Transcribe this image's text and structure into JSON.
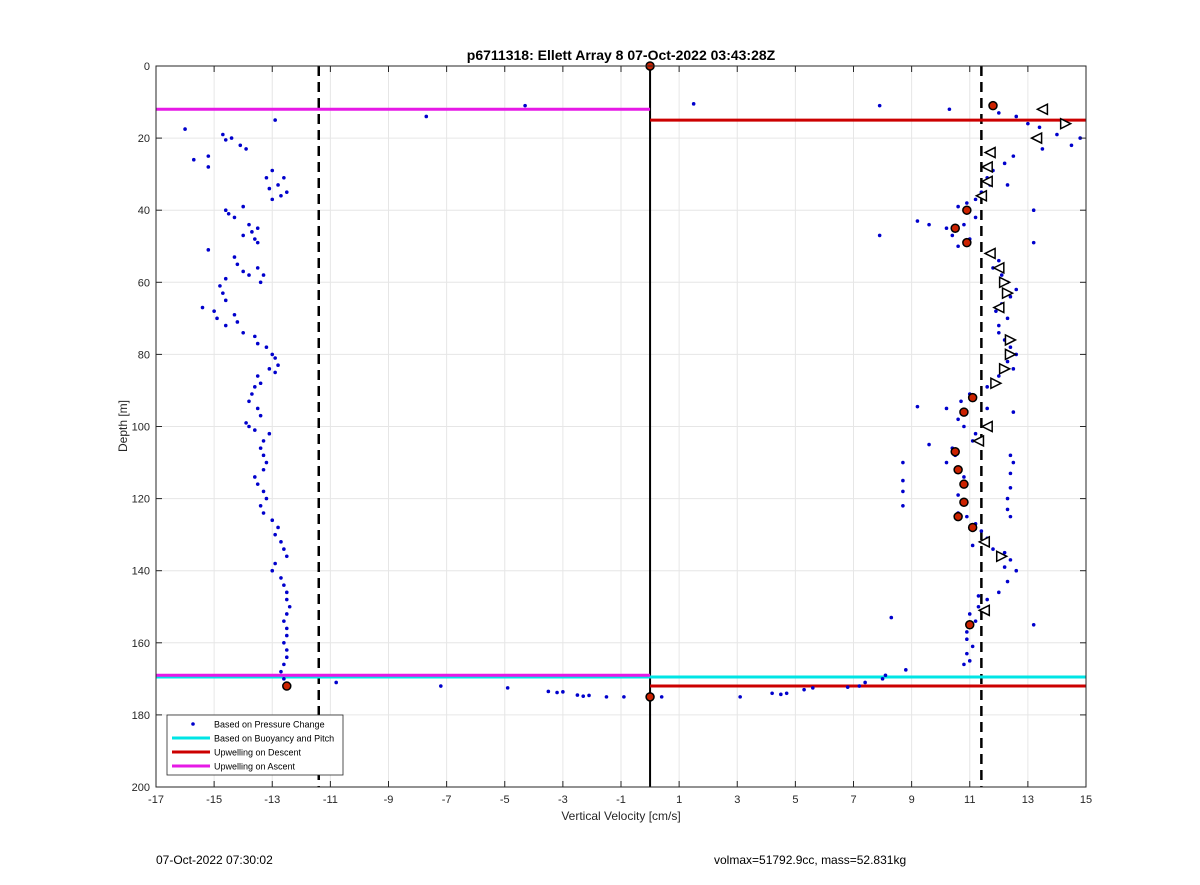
{
  "chart_data": {
    "type": "scatter",
    "title": "p6711318: Ellett Array 8 07-Oct-2022 03:43:28Z",
    "xlabel": "Vertical Velocity [cm/s]",
    "ylabel": "Depth [m]",
    "xlim": [
      -17,
      15
    ],
    "ylim": [
      0,
      200
    ],
    "y_reversed": true,
    "xticks": [
      -17,
      -15,
      -13,
      -11,
      -9,
      -7,
      -5,
      -3,
      -1,
      1,
      3,
      5,
      7,
      9,
      11,
      13,
      15
    ],
    "yticks": [
      0,
      20,
      40,
      60,
      80,
      100,
      120,
      140,
      160,
      180,
      200
    ],
    "grid": true,
    "legend_position": "bottom-left",
    "legend": [
      {
        "label": "Based on Pressure Change",
        "color": "#0000cc",
        "kind": "marker"
      },
      {
        "label": "Based on Buoyancy and Pitch",
        "color": "#00e5e5",
        "kind": "line"
      },
      {
        "label": "Upwelling on Descent",
        "color": "#cc0000",
        "kind": "line"
      },
      {
        "label": "Upwelling on Ascent",
        "color": "#e619e6",
        "kind": "line"
      }
    ],
    "colors": {
      "pressure": "#0000cc",
      "buoyancy": "#00e5e5",
      "descent": "#cc0000",
      "ascent": "#e619e6",
      "ref_line": "#000000",
      "grid": "#e6e6e6"
    },
    "reference_lines": {
      "zero": 0,
      "dashed": [
        -11.4,
        11.4
      ]
    },
    "horizontal_lines": [
      {
        "series": "ascent",
        "y": 12,
        "x0": -17,
        "x1": 0
      },
      {
        "series": "descent",
        "y": 15,
        "x0": 0,
        "x1": 15
      },
      {
        "series": "buoyancy",
        "y": 169.5,
        "x0": -17,
        "x1": 15
      },
      {
        "series": "ascent",
        "y": 169,
        "x0": -17,
        "x1": 0
      },
      {
        "series": "descent",
        "y": 172,
        "x0": 0,
        "x1": 15
      }
    ],
    "pressure_points": [
      [
        -16,
        17.5
      ],
      [
        -15.7,
        26
      ],
      [
        -15.2,
        25
      ],
      [
        -15.2,
        28
      ],
      [
        -14.7,
        19
      ],
      [
        -14.6,
        20.5
      ],
      [
        -14.4,
        20
      ],
      [
        -14.1,
        22
      ],
      [
        -13.9,
        23
      ],
      [
        -12.9,
        15
      ],
      [
        -13,
        29
      ],
      [
        -13.2,
        31
      ],
      [
        -12.8,
        33
      ],
      [
        -12.6,
        31
      ],
      [
        -12.5,
        35
      ],
      [
        -12.7,
        36
      ],
      [
        -13,
        37
      ],
      [
        -13.1,
        34
      ],
      [
        -14.6,
        40
      ],
      [
        -14.5,
        41
      ],
      [
        -14,
        39
      ],
      [
        -14.3,
        42
      ],
      [
        -13.8,
        44
      ],
      [
        -13.7,
        46
      ],
      [
        -13.6,
        48
      ],
      [
        -13.5,
        45
      ],
      [
        -14,
        47
      ],
      [
        -13.5,
        49
      ],
      [
        -15.2,
        51
      ],
      [
        -14.3,
        53
      ],
      [
        -14.2,
        55
      ],
      [
        -14,
        57
      ],
      [
        -13.8,
        58
      ],
      [
        -13.4,
        60
      ],
      [
        -13.3,
        58
      ],
      [
        -13.5,
        56
      ],
      [
        -14.6,
        59
      ],
      [
        -14.8,
        61
      ],
      [
        -14.7,
        63
      ],
      [
        -14.6,
        65
      ],
      [
        -15.4,
        67
      ],
      [
        -15,
        68
      ],
      [
        -14.9,
        70
      ],
      [
        -14.6,
        72
      ],
      [
        -14.2,
        71
      ],
      [
        -14.3,
        69
      ],
      [
        -14,
        74
      ],
      [
        -13.6,
        75
      ],
      [
        -13.5,
        77
      ],
      [
        -13.2,
        78
      ],
      [
        -13,
        80
      ],
      [
        -12.9,
        81
      ],
      [
        -12.8,
        83
      ],
      [
        -12.9,
        85
      ],
      [
        -13.1,
        84
      ],
      [
        -13.5,
        86
      ],
      [
        -13.4,
        88
      ],
      [
        -13.6,
        89
      ],
      [
        -13.7,
        91
      ],
      [
        -13.8,
        93
      ],
      [
        -13.5,
        95
      ],
      [
        -13.4,
        97
      ],
      [
        -13.8,
        100
      ],
      [
        -13.6,
        101
      ],
      [
        -13.9,
        99
      ],
      [
        -13.1,
        102
      ],
      [
        -13.3,
        104
      ],
      [
        -13.4,
        106
      ],
      [
        -13.3,
        108
      ],
      [
        -13.2,
        110
      ],
      [
        -13.3,
        112
      ],
      [
        -13.6,
        114
      ],
      [
        -13.5,
        116
      ],
      [
        -13.3,
        118
      ],
      [
        -13.2,
        120
      ],
      [
        -13.4,
        122
      ],
      [
        -13.3,
        124
      ],
      [
        -13,
        126
      ],
      [
        -12.8,
        128
      ],
      [
        -12.9,
        130
      ],
      [
        -12.7,
        132
      ],
      [
        -12.6,
        134
      ],
      [
        -12.5,
        136
      ],
      [
        -12.9,
        138
      ],
      [
        -13,
        140
      ],
      [
        -12.7,
        142
      ],
      [
        -12.6,
        144
      ],
      [
        -12.5,
        146
      ],
      [
        -12.5,
        148
      ],
      [
        -12.4,
        150
      ],
      [
        -12.5,
        152
      ],
      [
        -12.6,
        154
      ],
      [
        -12.5,
        156
      ],
      [
        -12.5,
        158
      ],
      [
        -12.6,
        160
      ],
      [
        -12.5,
        162
      ],
      [
        -12.5,
        164
      ],
      [
        -12.6,
        166
      ],
      [
        -12.7,
        168
      ],
      [
        -12.6,
        170
      ],
      [
        -12.5,
        172
      ],
      [
        -4.3,
        11
      ],
      [
        -7.7,
        14
      ],
      [
        1.5,
        10.5
      ],
      [
        7.9,
        11
      ],
      [
        10.3,
        12
      ],
      [
        12,
        13
      ],
      [
        12.6,
        14
      ],
      [
        13,
        16
      ],
      [
        13.4,
        17
      ],
      [
        14,
        19
      ],
      [
        14.8,
        20
      ],
      [
        14.5,
        22
      ],
      [
        13.5,
        23
      ],
      [
        12.5,
        25
      ],
      [
        12.2,
        27
      ],
      [
        11.8,
        29
      ],
      [
        11.6,
        31
      ],
      [
        11.7,
        33
      ],
      [
        11.4,
        35
      ],
      [
        11.2,
        37
      ],
      [
        10.9,
        38
      ],
      [
        10.6,
        39
      ],
      [
        12.3,
        33
      ],
      [
        11.2,
        42
      ],
      [
        10.8,
        44
      ],
      [
        9.2,
        43
      ],
      [
        9.6,
        44
      ],
      [
        10.2,
        45
      ],
      [
        10.4,
        47
      ],
      [
        11,
        48
      ],
      [
        10.6,
        50
      ],
      [
        7.9,
        47
      ],
      [
        13.2,
        40
      ],
      [
        13.2,
        49
      ],
      [
        11.7,
        52
      ],
      [
        12,
        54
      ],
      [
        11.8,
        56
      ],
      [
        12.1,
        58
      ],
      [
        12.3,
        60
      ],
      [
        12.6,
        62
      ],
      [
        12.4,
        64
      ],
      [
        12.1,
        66
      ],
      [
        11.9,
        68
      ],
      [
        12.3,
        70
      ],
      [
        12,
        72
      ],
      [
        12,
        74
      ],
      [
        12.2,
        76
      ],
      [
        12.4,
        78
      ],
      [
        12.6,
        80
      ],
      [
        12.3,
        82
      ],
      [
        12.5,
        84
      ],
      [
        12,
        86
      ],
      [
        11.6,
        89
      ],
      [
        11,
        91
      ],
      [
        10.7,
        93
      ],
      [
        10.2,
        95
      ],
      [
        9.2,
        94.5
      ],
      [
        11.6,
        95
      ],
      [
        12.5,
        96
      ],
      [
        10.6,
        98
      ],
      [
        10.8,
        100
      ],
      [
        11.2,
        102
      ],
      [
        11.1,
        104
      ],
      [
        10.4,
        106
      ],
      [
        9.6,
        105
      ],
      [
        10.5,
        108
      ],
      [
        10.2,
        110
      ],
      [
        8.7,
        110
      ],
      [
        10.6,
        112
      ],
      [
        8.7,
        115
      ],
      [
        10.8,
        114
      ],
      [
        10.9,
        116
      ],
      [
        12.4,
        108
      ],
      [
        12.5,
        110
      ],
      [
        12.4,
        113
      ],
      [
        12.4,
        117
      ],
      [
        12.3,
        120
      ],
      [
        12.3,
        123
      ],
      [
        10.6,
        119
      ],
      [
        10.9,
        121
      ],
      [
        8.7,
        118
      ],
      [
        8.7,
        122
      ],
      [
        10.6,
        124
      ],
      [
        10.9,
        125
      ],
      [
        11.2,
        127
      ],
      [
        11.4,
        129
      ],
      [
        11.6,
        131
      ],
      [
        11.1,
        133
      ],
      [
        11.8,
        134
      ],
      [
        12.2,
        135
      ],
      [
        12.4,
        137
      ],
      [
        12.2,
        139
      ],
      [
        12.6,
        140
      ],
      [
        12.3,
        143
      ],
      [
        12,
        146
      ],
      [
        11.6,
        148
      ],
      [
        11.3,
        150
      ],
      [
        11,
        152
      ],
      [
        8.3,
        153
      ],
      [
        12.4,
        125
      ],
      [
        11.3,
        147
      ],
      [
        11.2,
        154
      ],
      [
        10.9,
        157
      ],
      [
        10.9,
        159
      ],
      [
        11.1,
        161
      ],
      [
        10.9,
        163
      ],
      [
        11,
        165
      ],
      [
        10.8,
        166
      ],
      [
        13.2,
        155
      ],
      [
        8.8,
        167.5
      ],
      [
        8.1,
        169
      ],
      [
        8,
        170
      ],
      [
        7.4,
        171
      ],
      [
        7.2,
        172
      ],
      [
        6.8,
        172.3
      ],
      [
        5.6,
        172.5
      ],
      [
        5.3,
        173
      ],
      [
        4.7,
        174
      ],
      [
        4.5,
        174.3
      ],
      [
        4.2,
        174
      ],
      [
        3.1,
        175
      ],
      [
        0.4,
        175
      ],
      [
        -10.8,
        171
      ],
      [
        -7.2,
        172
      ],
      [
        -4.9,
        172.5
      ],
      [
        -3.5,
        173.5
      ],
      [
        -3.2,
        173.8
      ],
      [
        -3,
        173.6
      ],
      [
        -2.5,
        174.5
      ],
      [
        -2.3,
        174.8
      ],
      [
        -2.1,
        174.6
      ],
      [
        -1.5,
        175
      ],
      [
        -0.9,
        175
      ]
    ],
    "circle_markers": [
      [
        0,
        0
      ],
      [
        11.8,
        11
      ],
      [
        10.9,
        40
      ],
      [
        10.5,
        45
      ],
      [
        10.9,
        49
      ],
      [
        11.1,
        92
      ],
      [
        10.8,
        96
      ],
      [
        10.5,
        107
      ],
      [
        10.6,
        112
      ],
      [
        10.8,
        116
      ],
      [
        10.8,
        121
      ],
      [
        10.6,
        125
      ],
      [
        11.1,
        128
      ],
      [
        11,
        155
      ],
      [
        -12.5,
        172
      ],
      [
        0,
        175
      ]
    ],
    "triangle_markers": [
      {
        "x": 13.5,
        "y": 12,
        "dir": "left"
      },
      {
        "x": 14.3,
        "y": 16,
        "dir": "right"
      },
      {
        "x": 13.3,
        "y": 20,
        "dir": "left"
      },
      {
        "x": 11.7,
        "y": 24,
        "dir": "left"
      },
      {
        "x": 11.6,
        "y": 28,
        "dir": "left"
      },
      {
        "x": 11.6,
        "y": 32,
        "dir": "left"
      },
      {
        "x": 11.4,
        "y": 36,
        "dir": "left"
      },
      {
        "x": 11.7,
        "y": 52,
        "dir": "left"
      },
      {
        "x": 12,
        "y": 56,
        "dir": "left"
      },
      {
        "x": 12.2,
        "y": 60,
        "dir": "right"
      },
      {
        "x": 12.3,
        "y": 63,
        "dir": "right"
      },
      {
        "x": 12,
        "y": 67,
        "dir": "left"
      },
      {
        "x": 12.4,
        "y": 76,
        "dir": "right"
      },
      {
        "x": 12.4,
        "y": 80,
        "dir": "right"
      },
      {
        "x": 12.2,
        "y": 84,
        "dir": "right"
      },
      {
        "x": 11.9,
        "y": 88,
        "dir": "right"
      },
      {
        "x": 11.6,
        "y": 100,
        "dir": "left"
      },
      {
        "x": 11.3,
        "y": 104,
        "dir": "left"
      },
      {
        "x": 11.5,
        "y": 132,
        "dir": "left"
      },
      {
        "x": 12.1,
        "y": 136,
        "dir": "right"
      },
      {
        "x": 11.5,
        "y": 151,
        "dir": "left"
      }
    ]
  },
  "footer": {
    "timestamp": "07-Oct-2022 07:30:02",
    "info": "volmax=51792.9cc, mass=52.831kg"
  }
}
